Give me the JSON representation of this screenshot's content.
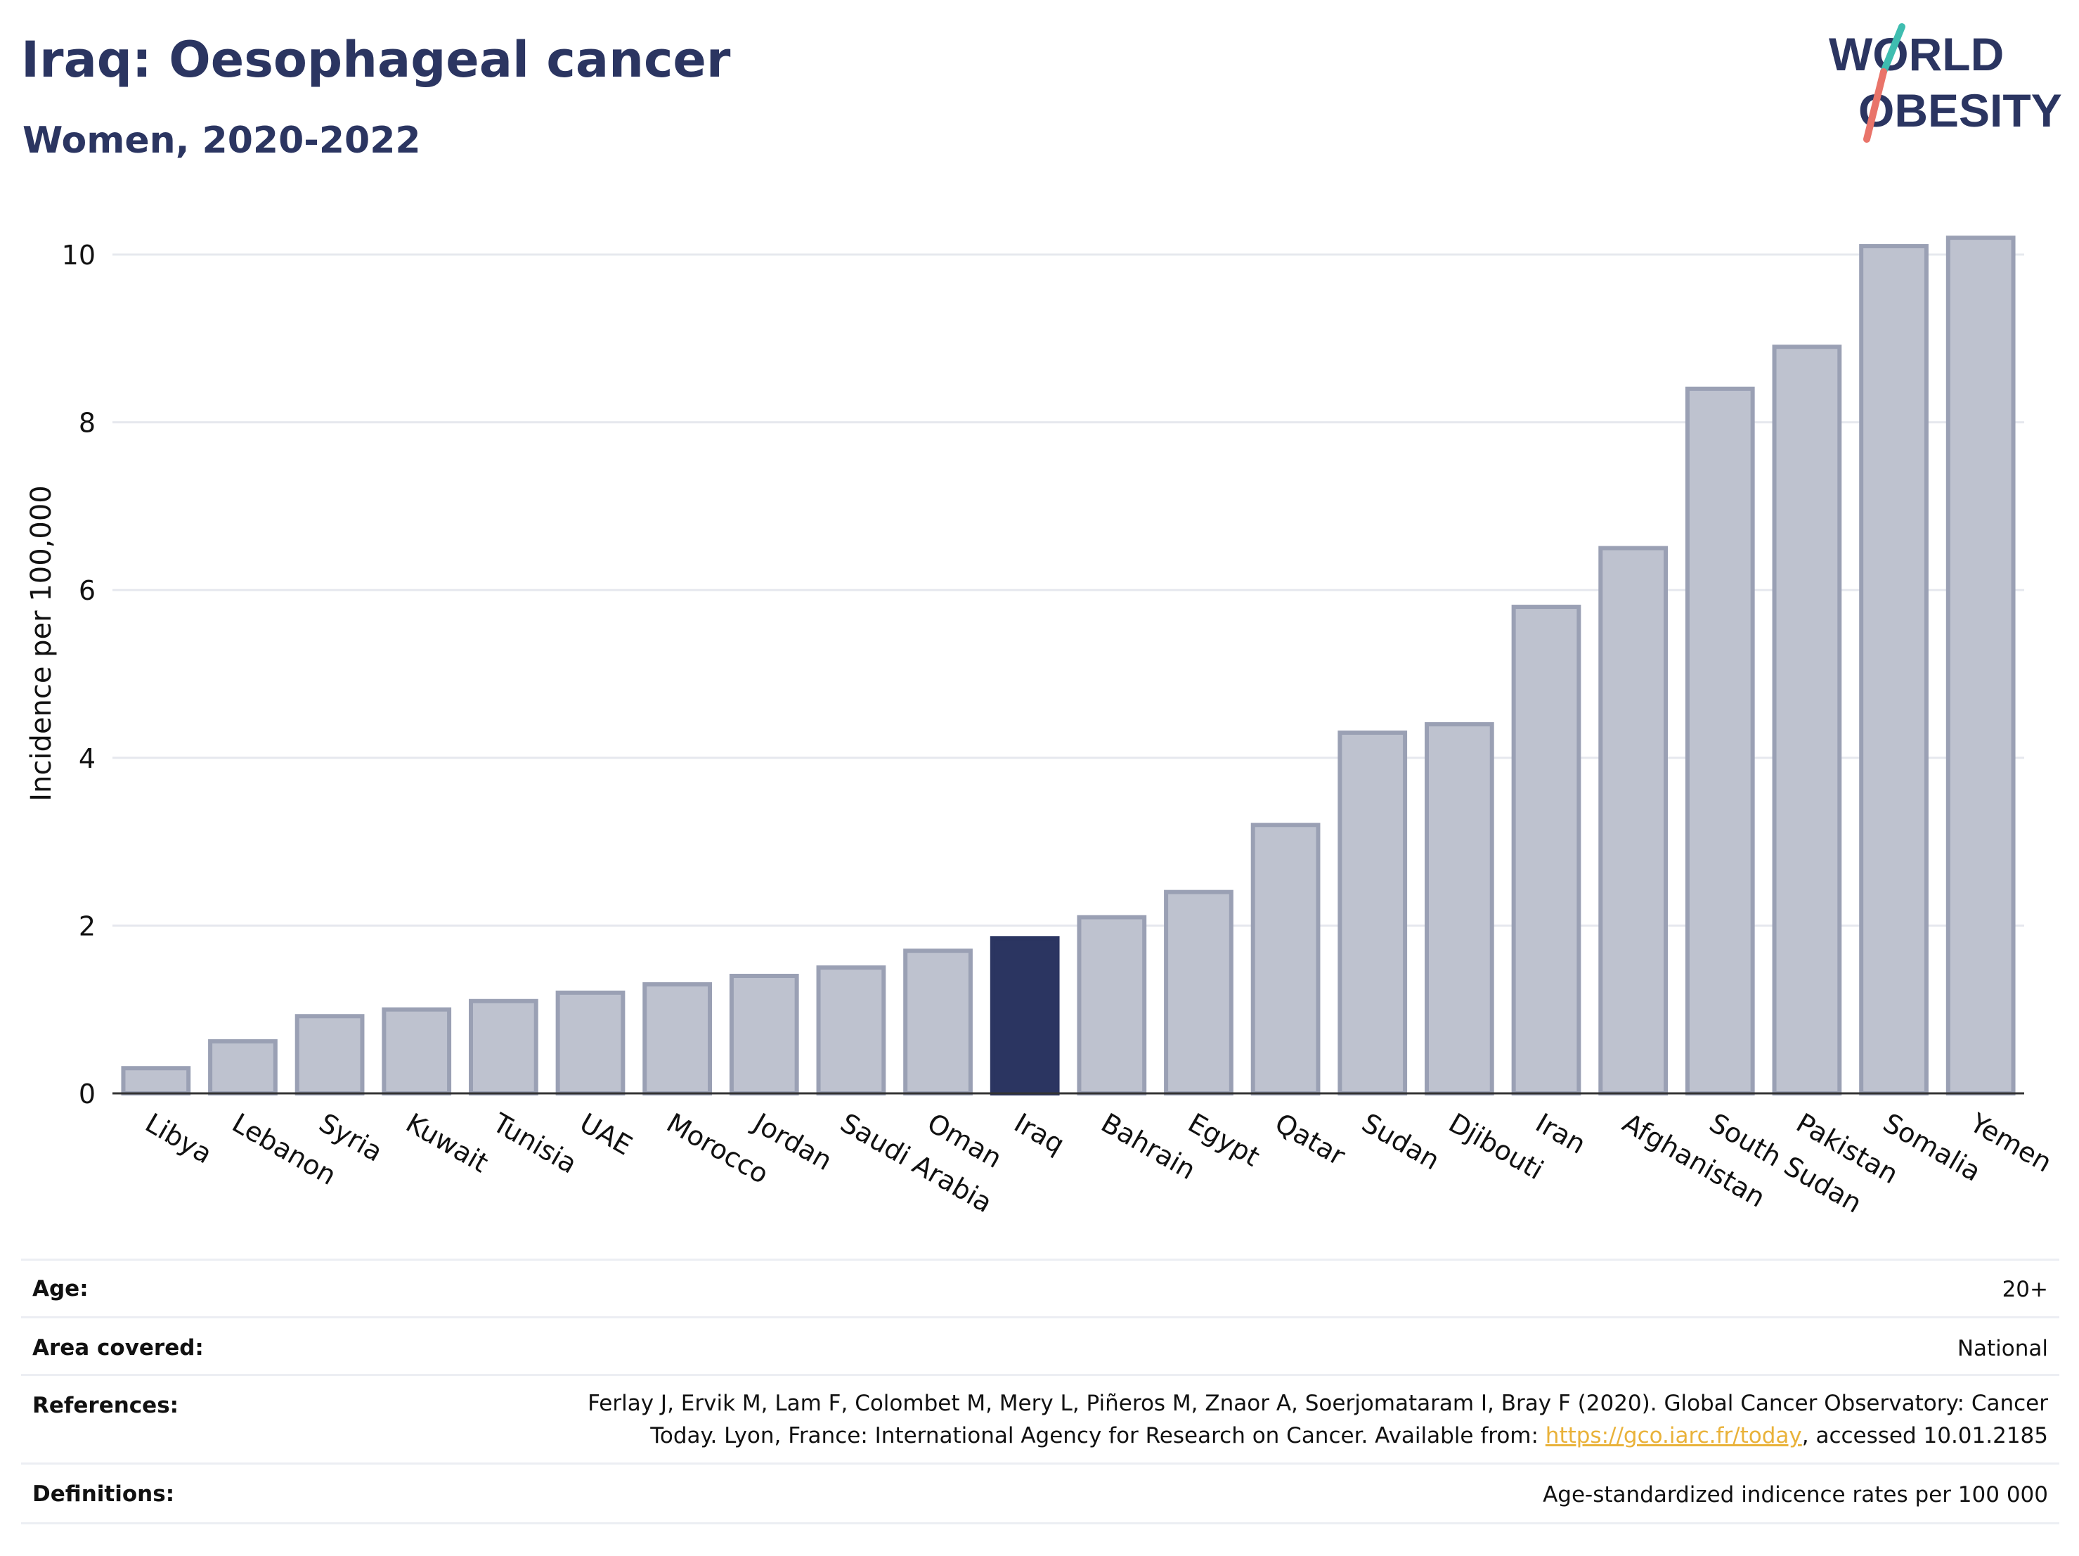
{
  "title": "Iraq: Oesophageal cancer",
  "subtitle": "Women, 2020-2022",
  "logo": {
    "line1": "WORLD",
    "line2": "OBESITY"
  },
  "colors": {
    "navy": "#2b3561",
    "bar": "#bec2cf",
    "bar_stroke": "#9aa0b4",
    "highlight": "#2b3561",
    "link": "#e9b23a",
    "logo_teal": "#3fbdb0",
    "logo_red": "#e9746a"
  },
  "chart_data": {
    "type": "bar",
    "categories": [
      "Libya",
      "Lebanon",
      "Syria",
      "Kuwait",
      "Tunisia",
      "UAE",
      "Morocco",
      "Jordan",
      "Saudi Arabia",
      "Oman",
      "Iraq",
      "Bahrain",
      "Egypt",
      "Qatar",
      "Sudan",
      "Djibouti",
      "Iran",
      "Afghanistan",
      "South Sudan",
      "Pakistan",
      "Somalia",
      "Yemen"
    ],
    "values": [
      0.3,
      0.62,
      0.92,
      1.0,
      1.1,
      1.2,
      1.3,
      1.4,
      1.5,
      1.7,
      1.85,
      2.1,
      2.4,
      3.2,
      4.3,
      4.4,
      5.8,
      6.5,
      8.4,
      8.9,
      10.1,
      10.2
    ],
    "highlight": "Iraq",
    "ylabel": "Incidence per 100,000",
    "xlabel": "",
    "yticks": [
      0,
      2,
      4,
      6,
      8,
      10
    ],
    "ylim": [
      0,
      10.6
    ],
    "grid": true
  },
  "info": {
    "age_label": "Age:",
    "age_value": "20+",
    "area_label": "Area covered:",
    "area_value": "National",
    "references_label": "References:",
    "references_line1": "Ferlay J, Ervik M, Lam F, Colombet M, Mery L, Piñeros M, Znaor A, Soerjomataram I, Bray F (2020). Global Cancer Observatory: Cancer",
    "references_line2_pre": "Today. Lyon, France: International Agency for Research on Cancer. Available from: ",
    "references_link": "https://gco.iarc.fr/today",
    "references_line2_post": ", accessed 10.01.2185",
    "definitions_label": "Definitions:",
    "definitions_value": "Age-standardized indicence rates per 100 000"
  }
}
